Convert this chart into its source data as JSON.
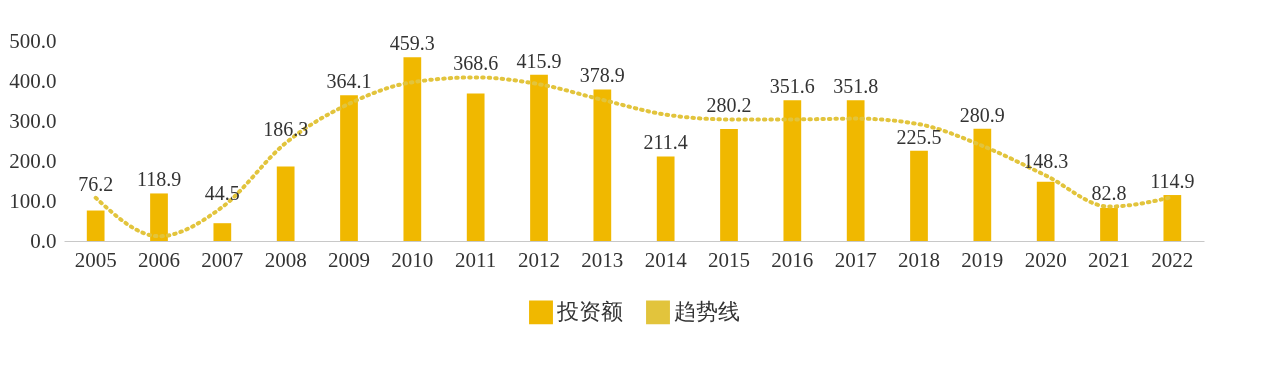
{
  "chart_data": {
    "type": "bar",
    "categories": [
      "2005",
      "2006",
      "2007",
      "2008",
      "2009",
      "2010",
      "2011",
      "2012",
      "2013",
      "2014",
      "2015",
      "2016",
      "2017",
      "2018",
      "2019",
      "2020",
      "2021",
      "2022"
    ],
    "series": [
      {
        "name": "投资额",
        "color": "#f0b800",
        "values": [
          76.2,
          118.9,
          44.5,
          186.3,
          364.1,
          459.3,
          368.6,
          415.9,
          378.9,
          211.4,
          280.2,
          351.6,
          351.8,
          225.5,
          280.9,
          148.3,
          82.8,
          114.9
        ],
        "value_labels": [
          "76.2",
          "118.9",
          "44.5",
          "186.3",
          "364.1",
          "459.3",
          "368.6",
          "415.9",
          "378.9",
          "211.4",
          "280.2",
          "351.6",
          "351.8",
          "225.5",
          "280.9",
          "148.3",
          "82.8",
          "114.9"
        ]
      },
      {
        "name": "趋势线",
        "type": "line",
        "line_style": "dotted",
        "color": "#e2c43c",
        "values": [
          108,
          12,
          85,
          245,
          343,
          397,
          409,
          392,
          353,
          316,
          304,
          304,
          306,
          292,
          238,
          164,
          86,
          110
        ]
      }
    ],
    "ylim": [
      0,
      500
    ],
    "yticks": [
      {
        "value": 0,
        "label": "0.0"
      },
      {
        "value": 100,
        "label": "100.0"
      },
      {
        "value": 200,
        "label": "200.0"
      },
      {
        "value": 300,
        "label": "300.0"
      },
      {
        "value": 400,
        "label": "400.0"
      },
      {
        "value": 500,
        "label": "500.0"
      }
    ],
    "legend": "bottom"
  }
}
